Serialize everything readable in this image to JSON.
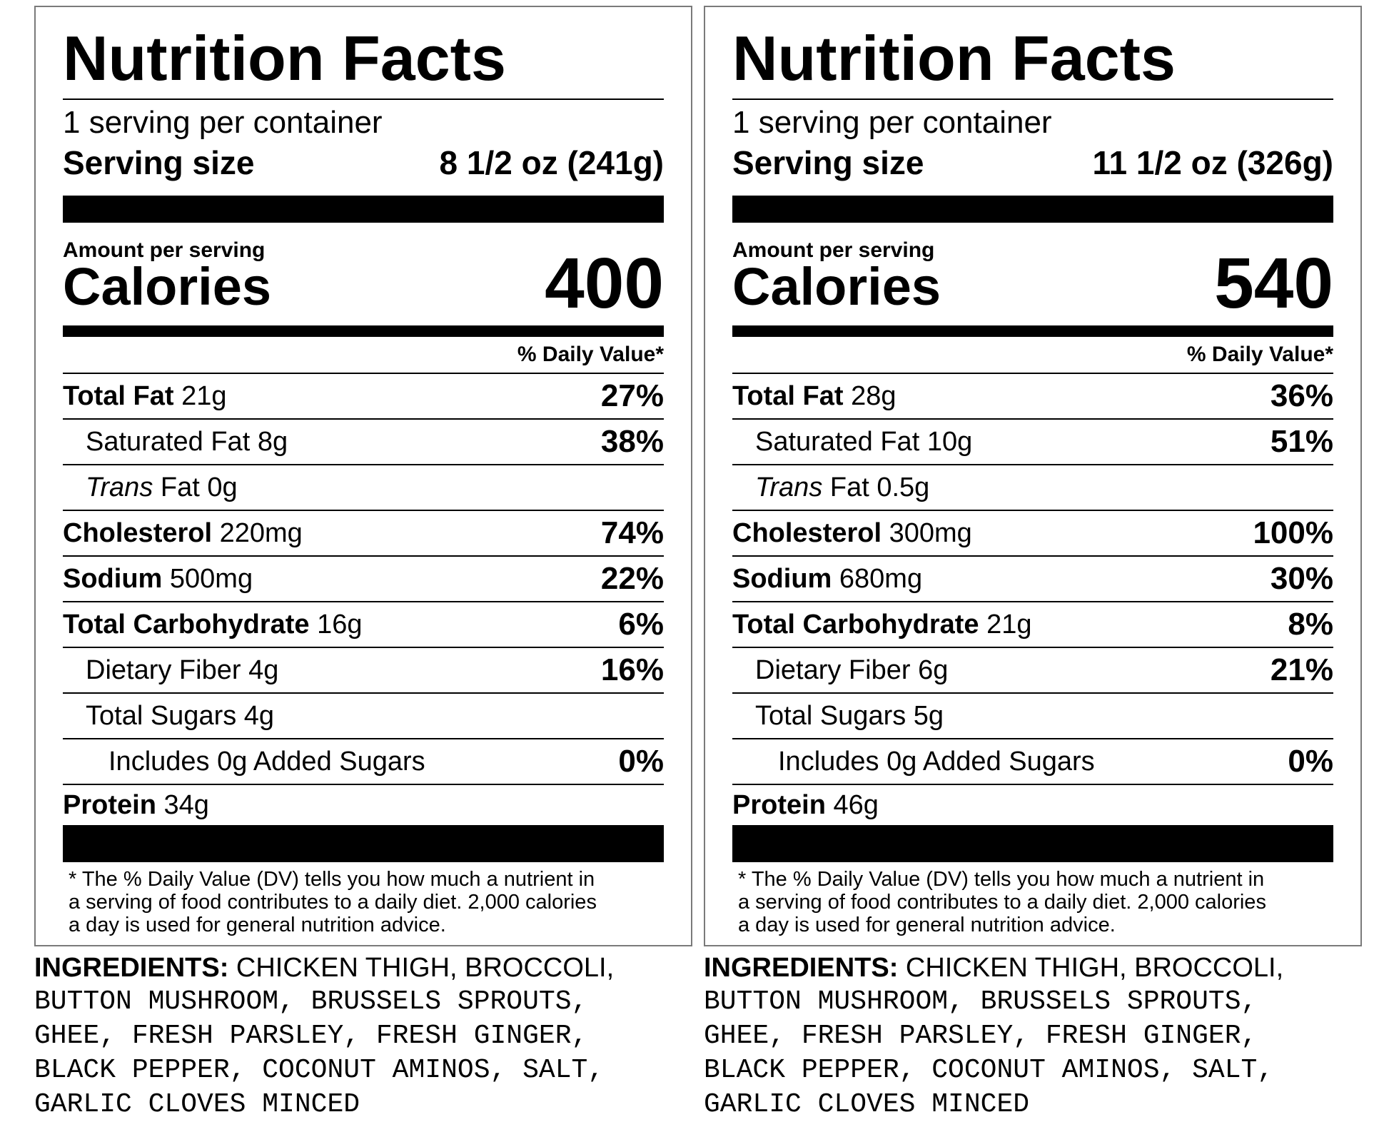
{
  "labels": [
    {
      "title": "Nutrition Facts",
      "servings_per_container": "1 serving per container",
      "serving_size_label": "Serving size",
      "serving_size_value": "8 1/2 oz (241g)",
      "amount_per_serving": "Amount per serving",
      "calories_label": "Calories",
      "calories_value": "400",
      "dv_header": "% Daily Value*",
      "nutrients": [
        {
          "name": "Total Fat",
          "amount": "21g",
          "dv": "27%"
        },
        {
          "name": "Saturated Fat",
          "amount": "8g",
          "dv": "38%"
        },
        {
          "name": "Trans",
          "name_suffix": "Fat",
          "amount": "0g",
          "dv": ""
        },
        {
          "name": "Cholesterol",
          "amount": "220mg",
          "dv": "74%"
        },
        {
          "name": "Sodium",
          "amount": "500mg",
          "dv": "22%"
        },
        {
          "name": "Total Carbohydrate",
          "amount": "16g",
          "dv": "6%"
        },
        {
          "name": "Dietary Fiber",
          "amount": "4g",
          "dv": "16%"
        },
        {
          "name": "Total Sugars",
          "amount": "4g",
          "dv": ""
        },
        {
          "name": "Includes 0g Added Sugars",
          "amount": "",
          "dv": "0%"
        },
        {
          "name": "Protein",
          "amount": "34g",
          "dv": ""
        }
      ],
      "footnote_lines": [
        "* The % Daily Value (DV) tells you how much a nutrient in",
        "a serving of food contributes to a daily diet. 2,000 calories",
        "a day is used for general nutrition advice."
      ],
      "ingredients_heading": "INGREDIENTS:",
      "ingredients_lines": [
        "CHICKEN THIGH, BROCCOLI,",
        "BUTTON MUSHROOM, BRUSSELS SPROUTS,",
        "GHEE, FRESH PARSLEY, FRESH GINGER,",
        "BLACK PEPPER, COCONUT AMINOS, SALT,",
        "GARLIC CLOVES MINCED"
      ]
    },
    {
      "title": "Nutrition Facts",
      "servings_per_container": "1 serving per container",
      "serving_size_label": "Serving size",
      "serving_size_value": "11 1/2 oz (326g)",
      "amount_per_serving": "Amount per serving",
      "calories_label": "Calories",
      "calories_value": "540",
      "dv_header": "% Daily Value*",
      "nutrients": [
        {
          "name": "Total Fat",
          "amount": "28g",
          "dv": "36%"
        },
        {
          "name": "Saturated Fat",
          "amount": "10g",
          "dv": "51%"
        },
        {
          "name": "Trans",
          "name_suffix": "Fat",
          "amount": "0.5g",
          "dv": ""
        },
        {
          "name": "Cholesterol",
          "amount": "300mg",
          "dv": "100%"
        },
        {
          "name": "Sodium",
          "amount": "680mg",
          "dv": "30%"
        },
        {
          "name": "Total Carbohydrate",
          "amount": "21g",
          "dv": "8%"
        },
        {
          "name": "Dietary Fiber",
          "amount": "6g",
          "dv": "21%"
        },
        {
          "name": "Total Sugars",
          "amount": "5g",
          "dv": ""
        },
        {
          "name": "Includes 0g Added Sugars",
          "amount": "",
          "dv": "0%"
        },
        {
          "name": "Protein",
          "amount": "46g",
          "dv": ""
        }
      ],
      "footnote_lines": [
        "* The % Daily Value (DV) tells you how much a nutrient in",
        "a serving of food contributes to a daily diet. 2,000 calories",
        "a day is used for general nutrition advice."
      ],
      "ingredients_heading": "INGREDIENTS:",
      "ingredients_lines": [
        "CHICKEN THIGH, BROCCOLI,",
        "BUTTON MUSHROOM, BRUSSELS SPROUTS,",
        "GHEE, FRESH PARSLEY, FRESH GINGER,",
        "BLACK PEPPER, COCONUT AMINOS, SALT,",
        "GARLIC CLOVES MINCED"
      ]
    }
  ]
}
